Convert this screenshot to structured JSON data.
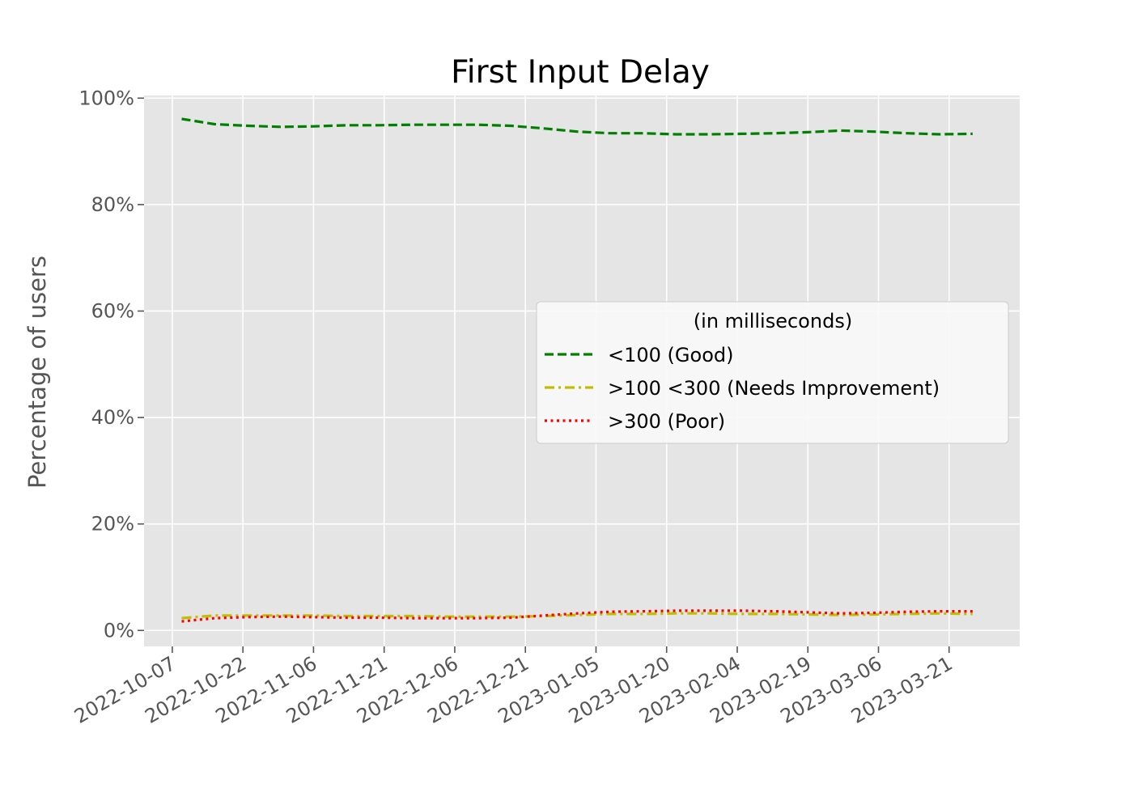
{
  "chart_data": {
    "type": "line",
    "title": "First Input Delay",
    "xlabel": "",
    "ylabel": "Percentage of users",
    "x_ticks": [
      "2022-10-07",
      "2022-10-22",
      "2022-11-06",
      "2022-11-21",
      "2022-12-06",
      "2022-12-21",
      "2023-01-05",
      "2023-01-20",
      "2023-02-04",
      "2023-02-19",
      "2023-03-06",
      "2023-03-21"
    ],
    "y_ticks": [
      "0%",
      "20%",
      "40%",
      "60%",
      "80%",
      "100%"
    ],
    "xlim": [
      "2022-10-01",
      "2023-04-05"
    ],
    "ylim": [
      -0.03,
      1.005
    ],
    "grid": true,
    "legend": {
      "title": "(in milliseconds)",
      "placement": "center-right"
    },
    "x": [
      "2022-10-09",
      "2022-10-16",
      "2022-10-23",
      "2022-10-30",
      "2022-11-06",
      "2022-11-13",
      "2022-11-20",
      "2022-11-27",
      "2022-12-04",
      "2022-12-11",
      "2022-12-18",
      "2022-12-25",
      "2023-01-01",
      "2023-01-08",
      "2023-01-15",
      "2023-01-22",
      "2023-01-29",
      "2023-02-05",
      "2023-02-12",
      "2023-02-19",
      "2023-02-26",
      "2023-03-05",
      "2023-03-12",
      "2023-03-19",
      "2023-03-26"
    ],
    "series": [
      {
        "name": "<100 (Good)",
        "color": "#008000",
        "style": "dashed",
        "values": [
          0.961,
          0.951,
          0.948,
          0.946,
          0.947,
          0.949,
          0.949,
          0.95,
          0.95,
          0.95,
          0.948,
          0.943,
          0.937,
          0.934,
          0.934,
          0.932,
          0.932,
          0.933,
          0.934,
          0.936,
          0.939,
          0.937,
          0.934,
          0.932,
          0.933
        ]
      },
      {
        "name": ">100  <300 (Needs Improvement)",
        "color": "#bfbf00",
        "style": "dashdot",
        "values": [
          0.023,
          0.028,
          0.028,
          0.028,
          0.028,
          0.027,
          0.027,
          0.027,
          0.026,
          0.026,
          0.026,
          0.027,
          0.029,
          0.031,
          0.031,
          0.032,
          0.032,
          0.031,
          0.031,
          0.03,
          0.029,
          0.03,
          0.031,
          0.032,
          0.031
        ]
      },
      {
        "name": ">300 (Poor)",
        "color": "#ff0000",
        "style": "dotted",
        "values": [
          0.017,
          0.023,
          0.025,
          0.026,
          0.025,
          0.024,
          0.024,
          0.023,
          0.023,
          0.023,
          0.024,
          0.028,
          0.032,
          0.035,
          0.036,
          0.037,
          0.037,
          0.037,
          0.036,
          0.034,
          0.032,
          0.033,
          0.035,
          0.036,
          0.036
        ]
      }
    ]
  }
}
